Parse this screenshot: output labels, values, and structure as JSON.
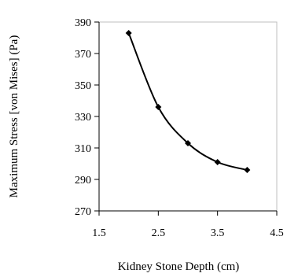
{
  "chart_data": {
    "type": "line",
    "title": "",
    "xlabel": "Kidney Stone Depth (cm)",
    "ylabel": "Maximum Stress [von Mises] (Pa)",
    "xlim": [
      1.5,
      4.5
    ],
    "ylim": [
      270,
      390
    ],
    "x_ticks": [
      1.5,
      2.5,
      3.5,
      4.5
    ],
    "x_tick_labels": [
      "1.5",
      "2.5",
      "3.5",
      "4.5"
    ],
    "y_ticks": [
      270,
      290,
      310,
      330,
      350,
      370,
      390
    ],
    "y_tick_labels": [
      "270",
      "290",
      "310",
      "330",
      "350",
      "370",
      "390"
    ],
    "grid": false,
    "legend": "none",
    "smooth": true,
    "marker": "diamond",
    "series": [
      {
        "x": [
          2.0,
          2.5,
          3.0,
          3.5,
          4.0
        ],
        "y": [
          383,
          336,
          313,
          301,
          296
        ],
        "color": "#000000"
      }
    ]
  }
}
